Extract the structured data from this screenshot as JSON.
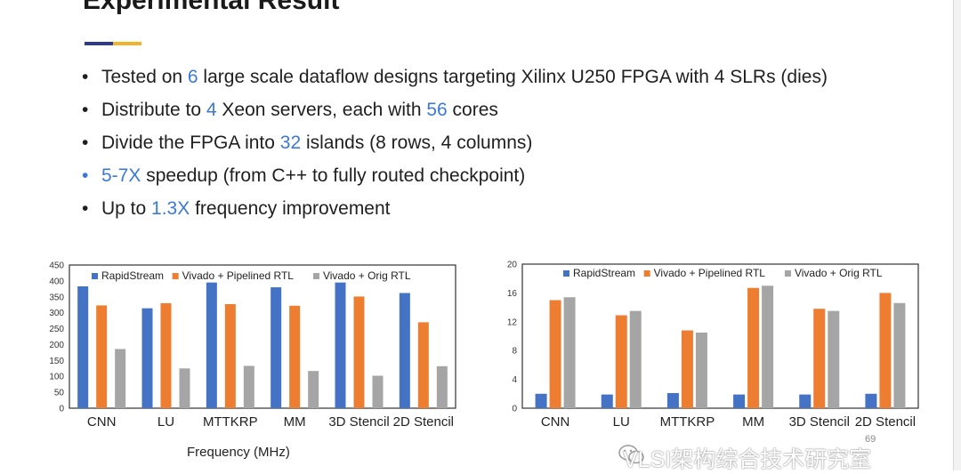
{
  "slide": {
    "title": "Experimental Result",
    "accent_colors": [
      "#2e3a8c",
      "#f0b429"
    ],
    "page_number": "69",
    "x_label": "Frequency (MHz)",
    "watermark": "VLSI架构综合技术研究室"
  },
  "bullets": [
    {
      "parts": [
        {
          "t": "Tested on "
        },
        {
          "t": "6",
          "hl": true
        },
        {
          "t": " large scale dataflow designs targeting Xilinx U250 FPGA with 4 SLRs (dies)"
        }
      ]
    },
    {
      "parts": [
        {
          "t": "Distribute to "
        },
        {
          "t": "4",
          "hl": true
        },
        {
          "t": " Xeon servers, each with "
        },
        {
          "t": "56",
          "hl": true
        },
        {
          "t": " cores"
        }
      ]
    },
    {
      "parts": [
        {
          "t": "Divide the FPGA into "
        },
        {
          "t": "32",
          "hl": true
        },
        {
          "t": " islands (8 rows, 4 columns)"
        }
      ]
    },
    {
      "parts": [
        {
          "t": "5-7X",
          "hl": true
        },
        {
          "t": " speedup (from C++ to fully routed checkpoint)"
        }
      ],
      "blue_bullet": true
    },
    {
      "parts": [
        {
          "t": "Up to "
        },
        {
          "t": "1.3X",
          "hl": true
        },
        {
          "t": " frequency improvement"
        }
      ]
    }
  ],
  "chart_data": [
    {
      "type": "bar",
      "categories": [
        "CNN",
        "LU",
        "MTTKRP",
        "MM",
        "3D Stencil",
        "2D Stencil"
      ],
      "series": [
        {
          "name": "RapidStream",
          "color": "#4472c4",
          "values": [
            383,
            314,
            395,
            380,
            395,
            362
          ]
        },
        {
          "name": "Vivado + Pipelined RTL",
          "color": "#ed7d31",
          "values": [
            323,
            330,
            327,
            322,
            351,
            270
          ]
        },
        {
          "name": "Vivado + Orig RTL",
          "color": "#a5a5a5",
          "values": [
            186,
            125,
            133,
            117,
            102,
            132
          ]
        }
      ],
      "ylim": [
        0,
        450
      ],
      "yticks": [
        0,
        50,
        100,
        150,
        200,
        250,
        300,
        350,
        400,
        450
      ],
      "legend": "top"
    },
    {
      "type": "bar",
      "categories": [
        "CNN",
        "LU",
        "MTTKRP",
        "MM",
        "3D Stencil",
        "2D Stencil"
      ],
      "series": [
        {
          "name": "RapidStream",
          "color": "#4472c4",
          "values": [
            2.0,
            1.9,
            2.1,
            1.9,
            1.9,
            2.0
          ]
        },
        {
          "name": "Vivado + Pipelined RTL",
          "color": "#ed7d31",
          "values": [
            15.0,
            12.9,
            10.8,
            16.7,
            13.8,
            16.0
          ]
        },
        {
          "name": "Vivado + Orig RTL",
          "color": "#a5a5a5",
          "values": [
            15.4,
            13.5,
            10.5,
            17.0,
            13.5,
            14.6
          ]
        }
      ],
      "ylim": [
        0,
        20
      ],
      "yticks": [
        0,
        4,
        8,
        12,
        16,
        20
      ],
      "legend": "top"
    }
  ]
}
